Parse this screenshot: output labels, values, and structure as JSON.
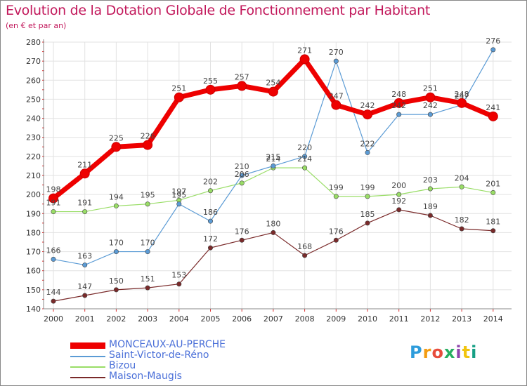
{
  "header": {
    "title": "Evolution de la Dotation Globale de Fonctionnement par Habitant",
    "subtitle": "(en € et par an)"
  },
  "logo": {
    "text": "Proxiti",
    "colors": [
      "#2e9cdb",
      "#f39c12",
      "#e74c3c",
      "#27ae60",
      "#8e44ad",
      "#f1c40f",
      "#16a085"
    ]
  },
  "chart_data": {
    "type": "line",
    "x": [
      "2000",
      "2001",
      "2002",
      "2003",
      "2004",
      "2005",
      "2006",
      "2007",
      "2008",
      "2009",
      "2010",
      "2011",
      "2012",
      "2013",
      "2014"
    ],
    "ylim": [
      140,
      280
    ],
    "yticks": [
      140,
      150,
      160,
      170,
      180,
      190,
      200,
      210,
      220,
      230,
      240,
      250,
      260,
      270,
      280
    ],
    "grid": true,
    "legend_position": "bottom-left",
    "series": [
      {
        "name": "MONCEAUX-AU-PERCHE",
        "color": "#ee0000",
        "width": 7,
        "values": [
          198,
          211,
          225,
          226,
          251,
          255,
          257,
          254,
          271,
          247,
          242,
          248,
          251,
          248,
          241
        ]
      },
      {
        "name": "Saint-Victor-de-Réno",
        "color": "#5b9bd5",
        "width": 1.2,
        "values": [
          166,
          163,
          170,
          170,
          195,
          186,
          210,
          215,
          220,
          270,
          222,
          242,
          242,
          247,
          276
        ]
      },
      {
        "name": "Bizou",
        "color": "#99dd66",
        "width": 1.2,
        "values": [
          191,
          191,
          194,
          195,
          197,
          202,
          206,
          214,
          214,
          199,
          199,
          200,
          203,
          204,
          201
        ]
      },
      {
        "name": "Maison-Maugis",
        "color": "#7a2a2a",
        "width": 1.2,
        "values": [
          144,
          147,
          150,
          151,
          153,
          172,
          176,
          180,
          168,
          176,
          185,
          192,
          189,
          182,
          181
        ]
      }
    ]
  }
}
